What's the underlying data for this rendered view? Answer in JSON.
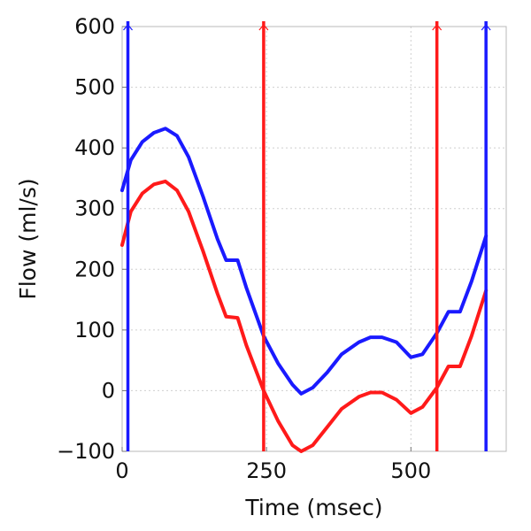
{
  "chart_data": {
    "type": "line",
    "title": "",
    "xlabel": "Time (msec)",
    "ylabel": "Flow (ml/s)",
    "xlim": [
      0,
      665
    ],
    "ylim": [
      -100,
      600
    ],
    "xticks": [
      0,
      250,
      500
    ],
    "yticks": [
      -100,
      0,
      100,
      200,
      300,
      400,
      500,
      600
    ],
    "xtick_labels": [
      "0",
      "250",
      "500"
    ],
    "ytick_labels": [
      "−100",
      "0",
      "100",
      "200",
      "300",
      "400",
      "500",
      "600"
    ],
    "grid": true,
    "series": [
      {
        "color": "#1a1aff",
        "x": [
          0,
          15,
          35,
          55,
          75,
          95,
          115,
          140,
          165,
          180,
          200,
          215,
          245,
          270,
          295,
          310,
          330,
          355,
          380,
          410,
          430,
          450,
          475,
          500,
          520,
          545,
          565,
          585,
          605,
          630
        ],
        "y": [
          330,
          380,
          410,
          425,
          432,
          420,
          385,
          320,
          250,
          215,
          215,
          170,
          90,
          45,
          10,
          -5,
          5,
          30,
          60,
          80,
          88,
          88,
          80,
          55,
          60,
          95,
          130,
          130,
          180,
          255
        ]
      },
      {
        "color": "#ff1a1a",
        "x": [
          0,
          15,
          35,
          55,
          75,
          95,
          115,
          140,
          165,
          180,
          200,
          215,
          245,
          270,
          295,
          310,
          330,
          355,
          380,
          410,
          430,
          450,
          475,
          500,
          520,
          545,
          565,
          585,
          605,
          630
        ],
        "y": [
          240,
          295,
          325,
          340,
          345,
          330,
          295,
          230,
          160,
          122,
          120,
          75,
          0,
          -50,
          -90,
          -100,
          -90,
          -60,
          -30,
          -10,
          -3,
          -3,
          -15,
          -37,
          -27,
          5,
          40,
          40,
          90,
          165
        ]
      }
    ],
    "vertical_markers": [
      {
        "x": 10,
        "color": "#1a1aff"
      },
      {
        "x": 245,
        "color": "#ff1a1a"
      },
      {
        "x": 545,
        "color": "#ff1a1a"
      },
      {
        "x": 630,
        "color": "#1a1aff"
      }
    ]
  }
}
